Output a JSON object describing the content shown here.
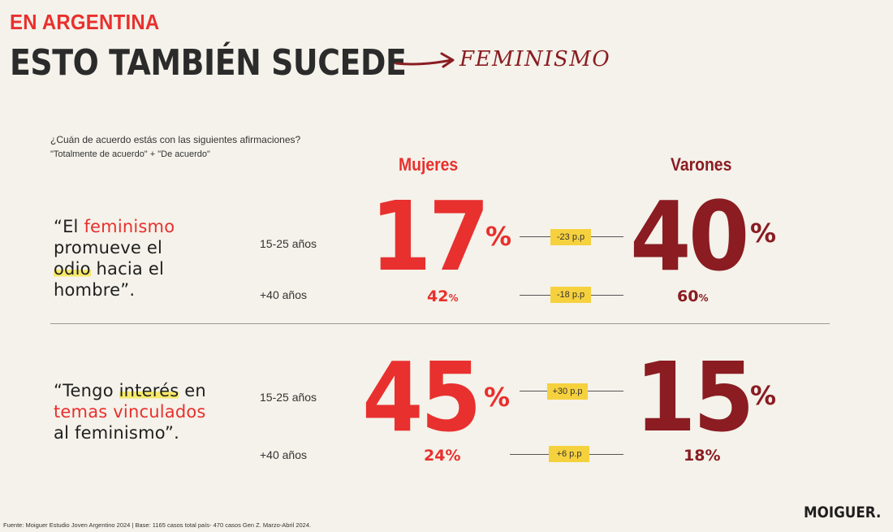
{
  "header": {
    "kicker": "EN ARGENTINA",
    "title": "ESTO TAMBIÉN SUCEDE",
    "topic": "FEMINISMO"
  },
  "question": "¿Cuán de acuerdo estás con las siguientes afirmaciones?",
  "scale_note": "\"Totalmente de acuerdo\" + \"De acuerdo\"",
  "columns": {
    "women": "Mujeres",
    "men": "Varones"
  },
  "colors": {
    "women": "#e8302e",
    "men": "#8a1c22",
    "highlight": "#f6d13e",
    "accent": "#e8302e"
  },
  "blocks": [
    {
      "statement": {
        "p1": "“El ",
        "p2": "feminismo",
        "p3": "promueve el",
        "p4": "odio",
        "p5": " hacia el",
        "p6": "hombre”."
      },
      "rows": [
        {
          "age": "15-25 años",
          "women": "17",
          "men": "40",
          "diff": "-23 p.p"
        },
        {
          "age": "+40 años",
          "women": "42",
          "men": "60",
          "diff": "-18 p.p"
        }
      ]
    },
    {
      "statement": {
        "p1": "“Tengo ",
        "p2": "interés",
        "p3": " en",
        "p4": "temas vinculados",
        "p5": "al feminismo”."
      },
      "rows": [
        {
          "age": "15-25 años",
          "women": "45",
          "men": "15",
          "diff": "+30 p.p"
        },
        {
          "age": "+40 años",
          "women": "24%",
          "men": "18%",
          "diff": "+6 p.p"
        }
      ]
    }
  ],
  "percent_sign": "%",
  "footer": "Fuente: Moiguer Estudio Joven Argentino 2024 | Base: 1165 casos total país- 470 casos Gen Z. Marzo-Abril 2024.",
  "brand": "MOIGUER."
}
